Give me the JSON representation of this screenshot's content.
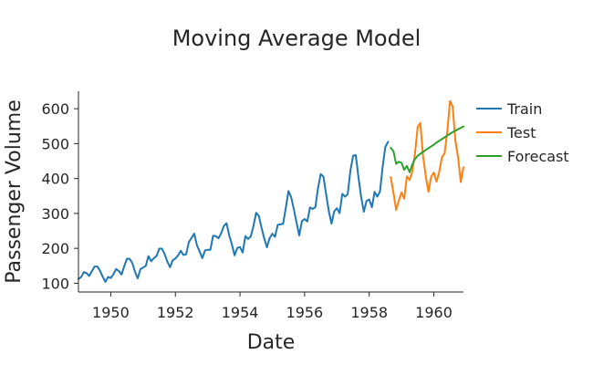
{
  "chart_data": {
    "type": "line",
    "title": "Moving Average Model",
    "xlabel": "Date",
    "ylabel": "Passenger Volume",
    "xlim": [
      "1949-01",
      "1960-12"
    ],
    "ylim": [
      75,
      650
    ],
    "x_ticks": [
      "1950",
      "1952",
      "1954",
      "1956",
      "1958",
      "1960"
    ],
    "y_ticks": [
      100,
      200,
      300,
      400,
      500,
      600
    ],
    "grid": false,
    "legend_position": "right",
    "series": [
      {
        "name": "Train",
        "color": "#1f77b4",
        "x": [
          "1949-01",
          "1949-02",
          "1949-03",
          "1949-04",
          "1949-05",
          "1949-06",
          "1949-07",
          "1949-08",
          "1949-09",
          "1949-10",
          "1949-11",
          "1949-12",
          "1950-01",
          "1950-02",
          "1950-03",
          "1950-04",
          "1950-05",
          "1950-06",
          "1950-07",
          "1950-08",
          "1950-09",
          "1950-10",
          "1950-11",
          "1950-12",
          "1951-01",
          "1951-02",
          "1951-03",
          "1951-04",
          "1951-05",
          "1951-06",
          "1951-07",
          "1951-08",
          "1951-09",
          "1951-10",
          "1951-11",
          "1951-12",
          "1952-01",
          "1952-02",
          "1952-03",
          "1952-04",
          "1952-05",
          "1952-06",
          "1952-07",
          "1952-08",
          "1952-09",
          "1952-10",
          "1952-11",
          "1952-12",
          "1953-01",
          "1953-02",
          "1953-03",
          "1953-04",
          "1953-05",
          "1953-06",
          "1953-07",
          "1953-08",
          "1953-09",
          "1953-10",
          "1953-11",
          "1953-12",
          "1954-01",
          "1954-02",
          "1954-03",
          "1954-04",
          "1954-05",
          "1954-06",
          "1954-07",
          "1954-08",
          "1954-09",
          "1954-10",
          "1954-11",
          "1954-12",
          "1955-01",
          "1955-02",
          "1955-03",
          "1955-04",
          "1955-05",
          "1955-06",
          "1955-07",
          "1955-08",
          "1955-09",
          "1955-10",
          "1955-11",
          "1955-12",
          "1956-01",
          "1956-02",
          "1956-03",
          "1956-04",
          "1956-05",
          "1956-06",
          "1956-07",
          "1956-08",
          "1956-09",
          "1956-10",
          "1956-11",
          "1956-12",
          "1957-01",
          "1957-02",
          "1957-03",
          "1957-04",
          "1957-05",
          "1957-06",
          "1957-07",
          "1957-08",
          "1957-09",
          "1957-10",
          "1957-11",
          "1957-12",
          "1958-01",
          "1958-02",
          "1958-03",
          "1958-04",
          "1958-05",
          "1958-06",
          "1958-07",
          "1958-08"
        ],
        "values": [
          112,
          118,
          132,
          129,
          121,
          135,
          148,
          148,
          136,
          119,
          104,
          118,
          115,
          126,
          141,
          135,
          125,
          149,
          170,
          170,
          158,
          133,
          114,
          140,
          145,
          150,
          178,
          163,
          172,
          178,
          199,
          199,
          184,
          162,
          146,
          166,
          171,
          180,
          193,
          181,
          183,
          218,
          230,
          242,
          209,
          191,
          172,
          194,
          196,
          196,
          236,
          235,
          229,
          243,
          264,
          272,
          237,
          211,
          180,
          201,
          204,
          188,
          235,
          227,
          234,
          264,
          302,
          293,
          259,
          229,
          203,
          229,
          242,
          233,
          267,
          269,
          270,
          315,
          364,
          347,
          312,
          274,
          237,
          278,
          284,
          277,
          317,
          313,
          318,
          374,
          413,
          405,
          355,
          306,
          271,
          306,
          315,
          301,
          356,
          348,
          355,
          422,
          465,
          467,
          404,
          347,
          305,
          336,
          340,
          318,
          362,
          348,
          363,
          435,
          491,
          505
        ]
      },
      {
        "name": "Test",
        "color": "#ff7f0e",
        "x": [
          "1958-09",
          "1958-10",
          "1958-11",
          "1958-12",
          "1959-01",
          "1959-02",
          "1959-03",
          "1959-04",
          "1959-05",
          "1959-06",
          "1959-07",
          "1959-08",
          "1959-09",
          "1959-10",
          "1959-11",
          "1959-12",
          "1960-01",
          "1960-02",
          "1960-03",
          "1960-04",
          "1960-05",
          "1960-06",
          "1960-07",
          "1960-08",
          "1960-09",
          "1960-10",
          "1960-11",
          "1960-12"
        ],
        "values": [
          404,
          359,
          310,
          337,
          360,
          342,
          406,
          396,
          420,
          472,
          548,
          559,
          463,
          407,
          362,
          405,
          417,
          391,
          419,
          461,
          472,
          535,
          622,
          606,
          508,
          461,
          390,
          432
        ]
      },
      {
        "name": "Forecast",
        "color": "#2ca02c",
        "x": [
          "1958-09",
          "1958-10",
          "1958-11",
          "1958-12",
          "1959-01",
          "1959-02",
          "1959-03",
          "1959-04",
          "1959-05",
          "1959-06",
          "1959-07",
          "1959-08",
          "1959-09",
          "1959-10",
          "1959-11",
          "1959-12",
          "1960-01",
          "1960-02",
          "1960-03",
          "1960-04",
          "1960-05",
          "1960-06",
          "1960-07",
          "1960-08",
          "1960-09",
          "1960-10",
          "1960-11",
          "1960-12"
        ],
        "values": [
          488,
          478,
          442,
          448,
          445,
          425,
          436,
          418,
          440,
          456,
          465,
          471,
          476,
          482,
          487,
          492,
          497,
          503,
          508,
          513,
          518,
          523,
          528,
          533,
          537,
          541,
          545,
          549
        ]
      }
    ]
  }
}
